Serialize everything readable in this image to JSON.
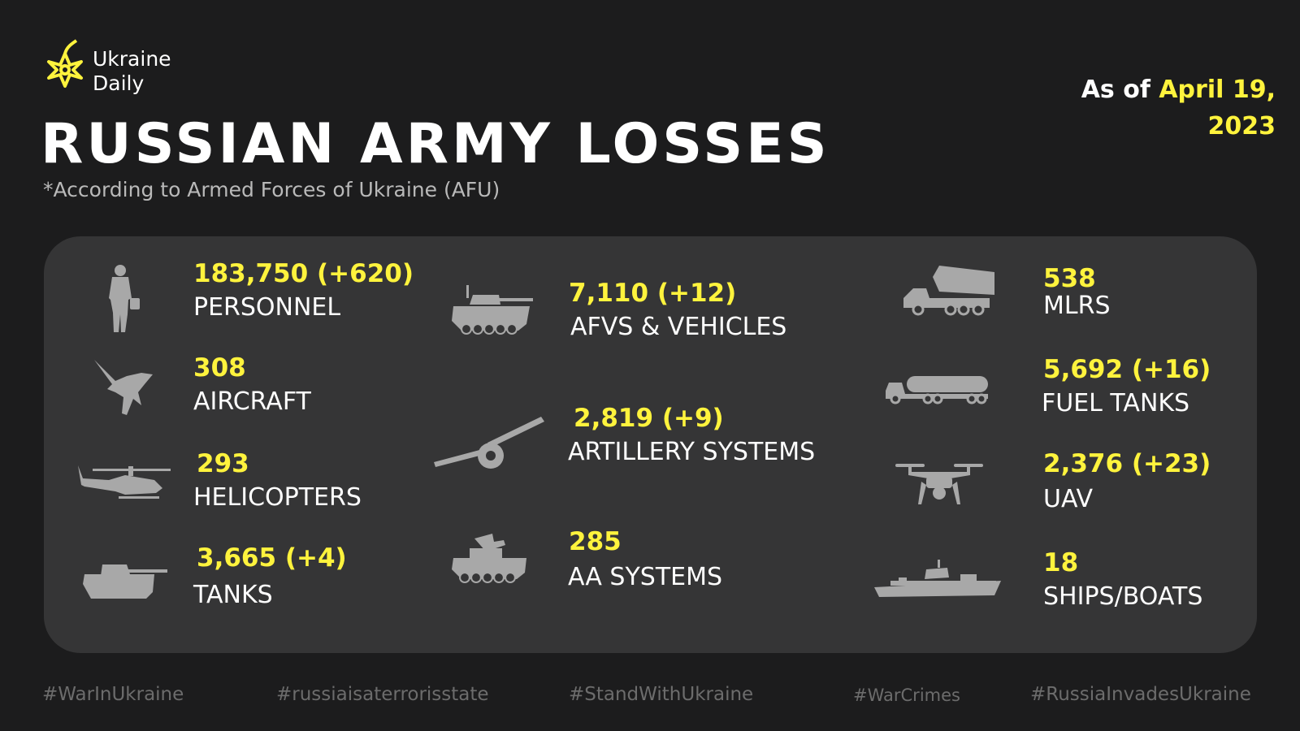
{
  "brand": {
    "line1": "Ukraine",
    "line2": "Daily",
    "accent": "#fff33d"
  },
  "header": {
    "title": "RUSSIAN ARMY LOSSES",
    "subtitle": "*According to Armed Forces of Ukraine (AFU)",
    "date_prefix": "As of",
    "date_line1": "April 19,",
    "date_line2": "2023"
  },
  "losses": {
    "personnel": {
      "value": "183,750 (+620)",
      "label": "PERSONNEL",
      "icon": "soldier-icon"
    },
    "aircraft": {
      "value": "308",
      "label": "AIRCRAFT",
      "icon": "jet-icon"
    },
    "helicopters": {
      "value": "293",
      "label": "HELICOPTERS",
      "icon": "helicopter-icon"
    },
    "tanks": {
      "value": "3,665 (+4)",
      "label": "TANKS",
      "icon": "tank-icon"
    },
    "afvs": {
      "value": "7,110 (+12)",
      "label": "AFVS & VEHICLES",
      "icon": "afv-icon"
    },
    "artillery": {
      "value": "2,819 (+9)",
      "label": "ARTILLERY SYSTEMS",
      "icon": "artillery-icon"
    },
    "aa": {
      "value": "285",
      "label": "AA SYSTEMS",
      "icon": "aa-vehicle-icon"
    },
    "mlrs": {
      "value": "538",
      "label": "MLRS",
      "icon": "mlrs-truck-icon"
    },
    "fuel": {
      "value": "5,692 (+16)",
      "label": "FUEL TANKS",
      "icon": "fuel-truck-icon"
    },
    "uav": {
      "value": "2,376 (+23)",
      "label": "UAV",
      "icon": "drone-icon"
    },
    "ships": {
      "value": "18",
      "label": "SHIPS/BOATS",
      "icon": "ship-icon"
    }
  },
  "hashtags": [
    "#WarInUkraine",
    "#russiaisaterrorisstate",
    "#StandWithUkraine",
    "#WarCrimes",
    "#RussiaInvadesUkraine"
  ]
}
